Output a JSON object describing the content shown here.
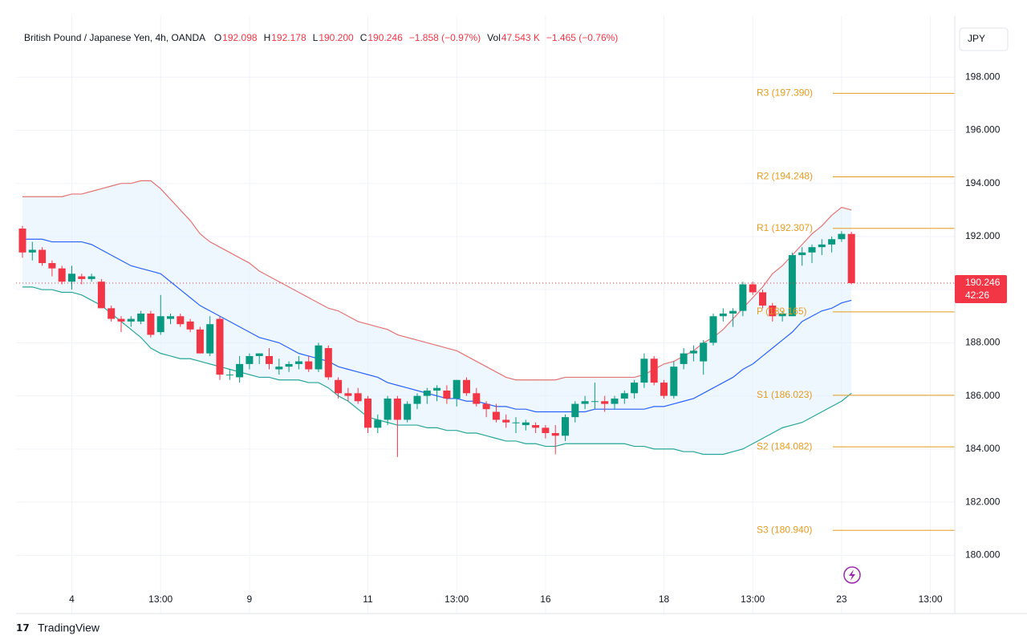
{
  "chart_data": {
    "type": "candlestick",
    "symbol": "British Pound / Japanese Yen, 4h, OANDA",
    "header": [
      {
        "key": "O",
        "text": "192.098"
      },
      {
        "key": "H",
        "text": "192.178"
      },
      {
        "key": "L",
        "text": "190.200"
      },
      {
        "key": "C",
        "text": "190.246"
      },
      {
        "key": "",
        "text": "−1.858 (−0.97%)"
      },
      {
        "key": "Vol",
        "text": "47.543 K"
      },
      {
        "key": "",
        "text": "−1.465 (−0.76%)"
      }
    ],
    "currency": "JPY",
    "footer": "TradingView",
    "up_color": "#089981",
    "down_color": "#f23645",
    "band_fill": "#e3f2fd",
    "ylim": [
      178.5,
      200.0
    ],
    "yticks": [
      {
        "value": 180,
        "label": "180.000"
      },
      {
        "value": 182,
        "label": "182.000"
      },
      {
        "value": 184,
        "label": "184.000"
      },
      {
        "value": 186,
        "label": "186.000"
      },
      {
        "value": 188,
        "label": "188.000"
      },
      {
        "value": 190,
        "label": "190.000"
      },
      {
        "value": 192,
        "label": "192.000"
      },
      {
        "value": 194,
        "label": "194.000"
      },
      {
        "value": 196,
        "label": "196.000"
      },
      {
        "value": 198,
        "label": "198.000"
      }
    ],
    "grid": true,
    "categories": [
      null,
      null,
      null,
      null,
      null,
      "4",
      null,
      null,
      null,
      null,
      null,
      null,
      null,
      null,
      "13:00",
      null,
      null,
      null,
      null,
      null,
      null,
      null,
      null,
      "9",
      null,
      null,
      null,
      null,
      null,
      null,
      null,
      null,
      null,
      null,
      null,
      "11",
      null,
      null,
      null,
      null,
      null,
      null,
      null,
      null,
      "13:00",
      null,
      null,
      null,
      null,
      null,
      null,
      null,
      null,
      "16",
      null,
      null,
      null,
      null,
      null,
      null,
      null,
      null,
      null,
      null,
      null,
      "18",
      null,
      null,
      null,
      null,
      null,
      null,
      null,
      null,
      "13:00",
      null,
      null,
      null,
      null,
      null,
      null,
      null,
      null,
      "23",
      null,
      null,
      null,
      null,
      null,
      null,
      null,
      null,
      "13:00"
    ],
    "candles": [
      [
        192.3,
        192.4,
        191.2,
        191.4
      ],
      [
        191.4,
        191.8,
        191.1,
        191.5
      ],
      [
        191.5,
        191.6,
        190.9,
        191.0
      ],
      [
        191.0,
        191.1,
        190.5,
        190.8
      ],
      [
        190.8,
        190.9,
        190.2,
        190.3
      ],
      [
        190.3,
        190.9,
        190.0,
        190.6
      ],
      [
        190.5,
        190.6,
        190.2,
        190.4
      ],
      [
        190.4,
        190.6,
        190.3,
        190.5
      ],
      [
        190.3,
        190.4,
        189.3,
        189.3
      ],
      [
        189.3,
        189.4,
        188.8,
        188.9
      ],
      [
        188.9,
        189.0,
        188.4,
        188.8
      ],
      [
        188.8,
        189.0,
        188.6,
        188.9
      ],
      [
        188.8,
        189.2,
        188.7,
        189.1
      ],
      [
        189.1,
        189.2,
        188.2,
        188.3
      ],
      [
        188.4,
        189.8,
        188.3,
        189.0
      ],
      [
        188.9,
        189.1,
        188.7,
        189.0
      ],
      [
        189.0,
        189.1,
        188.6,
        188.7
      ],
      [
        188.8,
        188.9,
        188.4,
        188.5
      ],
      [
        188.5,
        188.6,
        187.6,
        187.6
      ],
      [
        187.6,
        189.0,
        187.5,
        188.7
      ],
      [
        188.9,
        189.0,
        186.6,
        186.8
      ],
      [
        186.8,
        187.0,
        186.6,
        186.8
      ],
      [
        186.7,
        187.5,
        186.5,
        187.2
      ],
      [
        187.2,
        187.6,
        187.0,
        187.5
      ],
      [
        187.5,
        187.6,
        187.2,
        187.6
      ],
      [
        187.5,
        187.8,
        187.0,
        187.2
      ],
      [
        187.0,
        187.4,
        186.8,
        187.1
      ],
      [
        187.1,
        187.3,
        186.9,
        187.2
      ],
      [
        187.2,
        187.5,
        187.0,
        187.3
      ],
      [
        187.3,
        187.5,
        186.9,
        187.0
      ],
      [
        187.0,
        188.0,
        186.9,
        187.9
      ],
      [
        187.8,
        187.9,
        186.6,
        186.7
      ],
      [
        186.6,
        186.7,
        185.9,
        186.1
      ],
      [
        186.1,
        186.3,
        185.8,
        186.0
      ],
      [
        186.1,
        186.3,
        185.7,
        185.8
      ],
      [
        185.9,
        186.0,
        184.6,
        184.8
      ],
      [
        184.8,
        185.3,
        184.6,
        185.1
      ],
      [
        185.1,
        186.0,
        184.9,
        185.9
      ],
      [
        185.9,
        186.0,
        183.7,
        185.1
      ],
      [
        185.1,
        185.8,
        185.0,
        185.7
      ],
      [
        185.7,
        186.1,
        185.5,
        186.0
      ],
      [
        186.0,
        186.3,
        185.7,
        186.2
      ],
      [
        186.2,
        186.4,
        185.8,
        186.3
      ],
      [
        186.2,
        186.4,
        185.7,
        185.9
      ],
      [
        185.9,
        186.6,
        185.6,
        186.6
      ],
      [
        186.6,
        186.7,
        186.0,
        186.1
      ],
      [
        186.1,
        186.3,
        185.6,
        185.7
      ],
      [
        185.7,
        185.8,
        185.2,
        185.5
      ],
      [
        185.4,
        185.7,
        185.0,
        185.1
      ],
      [
        185.1,
        185.3,
        184.8,
        185.0
      ],
      [
        185.0,
        185.2,
        184.6,
        185.0
      ],
      [
        184.9,
        185.1,
        184.7,
        185.0
      ],
      [
        184.9,
        185.0,
        184.6,
        184.8
      ],
      [
        184.8,
        184.9,
        184.4,
        184.6
      ],
      [
        184.6,
        184.9,
        183.8,
        184.5
      ],
      [
        184.5,
        185.3,
        184.3,
        185.2
      ],
      [
        185.2,
        185.8,
        185.0,
        185.7
      ],
      [
        185.7,
        186.0,
        185.5,
        185.8
      ],
      [
        185.8,
        186.5,
        185.5,
        185.8
      ],
      [
        185.8,
        186.0,
        185.4,
        185.7
      ],
      [
        185.7,
        186.0,
        185.5,
        185.9
      ],
      [
        185.9,
        186.2,
        185.7,
        186.1
      ],
      [
        186.1,
        186.6,
        185.9,
        186.5
      ],
      [
        186.5,
        187.6,
        186.3,
        187.4
      ],
      [
        187.4,
        187.5,
        186.4,
        186.5
      ],
      [
        186.5,
        186.6,
        185.9,
        186.0
      ],
      [
        186.0,
        187.3,
        185.9,
        187.1
      ],
      [
        187.2,
        187.8,
        187.0,
        187.6
      ],
      [
        187.6,
        187.9,
        187.3,
        187.7
      ],
      [
        187.3,
        188.1,
        186.8,
        188.0
      ],
      [
        188.0,
        189.1,
        187.9,
        189.0
      ],
      [
        189.0,
        189.3,
        188.8,
        189.1
      ],
      [
        189.1,
        189.3,
        188.6,
        189.2
      ],
      [
        189.2,
        190.3,
        189.0,
        190.2
      ],
      [
        190.2,
        190.3,
        189.8,
        189.9
      ],
      [
        189.9,
        190.0,
        189.3,
        189.4
      ],
      [
        189.4,
        189.5,
        188.8,
        189.0
      ],
      [
        189.0,
        189.2,
        188.8,
        189.1
      ],
      [
        189.0,
        191.4,
        189.0,
        191.3
      ],
      [
        191.3,
        191.6,
        190.9,
        191.4
      ],
      [
        191.4,
        191.7,
        191.0,
        191.6
      ],
      [
        191.6,
        191.9,
        191.3,
        191.7
      ],
      [
        191.7,
        192.0,
        191.4,
        191.9
      ],
      [
        191.9,
        192.2,
        191.8,
        192.1
      ],
      [
        192.098,
        192.178,
        190.2,
        190.246
      ],
      null,
      null,
      null,
      null,
      null,
      null,
      null,
      null
    ],
    "bands": [
      {
        "color": "#e57373",
        "values": [
          193.5,
          193.5,
          193.5,
          193.5,
          193.5,
          193.6,
          193.6,
          193.7,
          193.8,
          193.9,
          194.0,
          194.0,
          194.1,
          194.1,
          193.8,
          193.4,
          193.0,
          192.6,
          192.1,
          191.8,
          191.6,
          191.4,
          191.2,
          191.0,
          190.7,
          190.5,
          190.3,
          190.1,
          189.9,
          189.7,
          189.5,
          189.3,
          189.2,
          189.0,
          188.8,
          188.7,
          188.6,
          188.5,
          188.3,
          188.2,
          188.1,
          188.0,
          187.9,
          187.8,
          187.7,
          187.5,
          187.3,
          187.1,
          186.9,
          186.7,
          186.6,
          186.6,
          186.6,
          186.6,
          186.6,
          186.7,
          186.7,
          186.7,
          186.7,
          186.7,
          186.7,
          186.7,
          186.7,
          186.8,
          187.0,
          187.2,
          187.3,
          187.5,
          187.7,
          188.0,
          188.2,
          188.5,
          188.9,
          189.3,
          189.7,
          190.1,
          190.6,
          190.9,
          191.3,
          191.7,
          192.1,
          192.4,
          192.8,
          193.1,
          193.0,
          null,
          null,
          null,
          null,
          null,
          null,
          null,
          null
        ]
      },
      {
        "color": "#2962ff",
        "values": [
          191.9,
          191.9,
          191.9,
          191.8,
          191.8,
          191.8,
          191.8,
          191.7,
          191.5,
          191.3,
          191.1,
          190.9,
          190.8,
          190.7,
          190.6,
          190.3,
          190.0,
          189.7,
          189.4,
          189.2,
          189.0,
          188.8,
          188.6,
          188.4,
          188.2,
          188.1,
          188.0,
          187.8,
          187.6,
          187.5,
          187.4,
          187.3,
          187.1,
          187.0,
          186.9,
          186.8,
          186.7,
          186.5,
          186.4,
          186.3,
          186.2,
          186.1,
          186.0,
          185.9,
          185.9,
          185.8,
          185.8,
          185.7,
          185.6,
          185.6,
          185.5,
          185.5,
          185.4,
          185.4,
          185.4,
          185.4,
          185.4,
          185.4,
          185.5,
          185.5,
          185.5,
          185.5,
          185.5,
          185.5,
          185.6,
          185.6,
          185.7,
          185.8,
          185.9,
          186.1,
          186.3,
          186.5,
          186.7,
          187.0,
          187.2,
          187.5,
          187.8,
          188.1,
          188.4,
          188.8,
          189.0,
          189.2,
          189.3,
          189.5,
          189.6,
          null,
          null,
          null,
          null,
          null,
          null,
          null,
          null
        ]
      },
      {
        "color": "#26a69a",
        "values": [
          190.1,
          190.1,
          190.0,
          190.0,
          189.9,
          189.9,
          189.8,
          189.6,
          189.4,
          189.1,
          188.8,
          188.5,
          188.2,
          187.8,
          187.6,
          187.5,
          187.4,
          187.4,
          187.3,
          187.2,
          187.1,
          187.0,
          186.9,
          186.8,
          186.7,
          186.7,
          186.6,
          186.6,
          186.6,
          186.5,
          186.5,
          186.3,
          186.0,
          185.8,
          185.5,
          185.2,
          185.1,
          185.0,
          184.9,
          184.9,
          184.9,
          184.8,
          184.8,
          184.7,
          184.7,
          184.6,
          184.6,
          184.5,
          184.4,
          184.3,
          184.3,
          184.2,
          184.2,
          184.1,
          184.1,
          184.2,
          184.2,
          184.2,
          184.2,
          184.2,
          184.2,
          184.2,
          184.1,
          184.1,
          184.0,
          184.0,
          184.0,
          183.9,
          183.9,
          183.8,
          183.8,
          183.8,
          183.9,
          184.0,
          184.2,
          184.4,
          184.6,
          184.8,
          184.9,
          185.0,
          185.2,
          185.4,
          185.6,
          185.8,
          186.1,
          null,
          null,
          null,
          null,
          null,
          null,
          null,
          null
        ]
      }
    ],
    "pivot_color": "#e69b1e",
    "pivots": [
      {
        "label": "R3 (197.390)",
        "value": 197.39
      },
      {
        "label": "R2 (194.248)",
        "value": 194.248
      },
      {
        "label": "R1 (192.307)",
        "value": 192.307
      },
      {
        "label": "P (189.165)",
        "value": 189.165
      },
      {
        "label": "S1 (186.023)",
        "value": 186.023
      },
      {
        "label": "S2 (184.082)",
        "value": 184.082
      },
      {
        "label": "S3 (180.940)",
        "value": 180.94
      }
    ],
    "last_price": 190.246,
    "countdown": "42:26"
  }
}
